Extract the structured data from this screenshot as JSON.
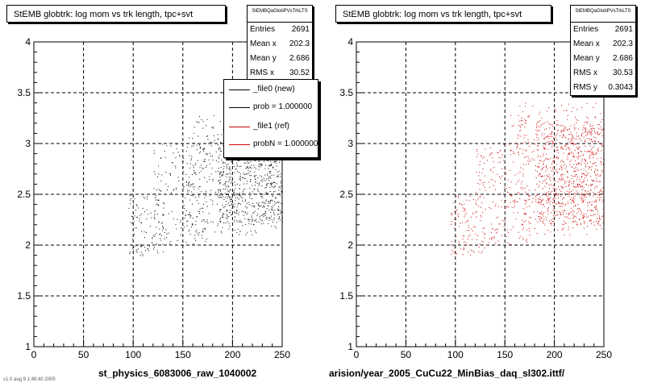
{
  "chart_data": [
    {
      "type": "scatter",
      "title": "StEMB globtrk: log mom vs trk length, tpc+svt",
      "xlim": [
        0,
        250
      ],
      "ylim": [
        1,
        4
      ],
      "xticks": [
        "0",
        "50",
        "100",
        "150",
        "200",
        "250"
      ],
      "yticks": [
        "1",
        "1.5",
        "2",
        "2.5",
        "3",
        "3.5",
        "4"
      ],
      "xlabel": "st_physics_6083006_raw_1040002",
      "grid": true,
      "color": "#000000",
      "stats": {
        "header": "StEMBQaGlobPVsTrkLTS",
        "rows": [
          {
            "label": "Entries",
            "value": "2691"
          },
          {
            "label": "Mean x",
            "value": "202.3"
          },
          {
            "label": "Mean y",
            "value": "2.686"
          },
          {
            "label": "RMS x",
            "value": "30.52"
          }
        ]
      },
      "legend": [
        {
          "label": "_file0 (new)",
          "color": "#000000"
        },
        {
          "label": "prob = 1.000000",
          "color": "#000000"
        },
        {
          "label": "_file1 (ref)",
          "color": "#cc0000"
        },
        {
          "label": "probN = 1.000000",
          "color": "#cc0000"
        }
      ],
      "density": [
        {
          "x": [
            95,
            130
          ],
          "y": [
            1.9,
            2.5
          ],
          "n": 110
        },
        {
          "x": [
            120,
            175
          ],
          "y": [
            2.0,
            3.0
          ],
          "n": 190
        },
        {
          "x": [
            155,
            250
          ],
          "y": [
            2.1,
            3.3
          ],
          "n": 380
        },
        {
          "x": [
            185,
            250
          ],
          "y": [
            2.2,
            3.1
          ],
          "n": 620
        }
      ]
    },
    {
      "type": "scatter",
      "title": "StEMB globtrk: log mom vs trk length, tpc+svt",
      "xlim": [
        0,
        250
      ],
      "ylim": [
        1,
        4
      ],
      "xticks": [
        "0",
        "50",
        "100",
        "150",
        "200",
        "250"
      ],
      "yticks": [
        "1",
        "1.5",
        "2",
        "2.5",
        "3",
        "3.5",
        "4"
      ],
      "xlabel": "arision/year_2005_CuCu22_MinBias_daq_sl302.ittf/",
      "grid": true,
      "color": "#cc0000",
      "stats": {
        "header": "StEMBQaGlobPVsTrkLTS",
        "rows": [
          {
            "label": "Entries",
            "value": "2691"
          },
          {
            "label": "Mean x",
            "value": "202.3"
          },
          {
            "label": "Mean y",
            "value": "2.686"
          },
          {
            "label": "RMS x",
            "value": "30.53"
          },
          {
            "label": "RMS y",
            "value": "0.3043"
          }
        ]
      },
      "density": [
        {
          "x": [
            95,
            130
          ],
          "y": [
            1.9,
            2.5
          ],
          "n": 110
        },
        {
          "x": [
            120,
            175
          ],
          "y": [
            2.0,
            3.0
          ],
          "n": 190
        },
        {
          "x": [
            155,
            250
          ],
          "y": [
            2.1,
            3.4
          ],
          "n": 420
        },
        {
          "x": [
            180,
            250
          ],
          "y": [
            2.2,
            3.2
          ],
          "n": 680
        }
      ]
    }
  ],
  "footer_text": "v1.0 aug  9  1:49:40 2005"
}
